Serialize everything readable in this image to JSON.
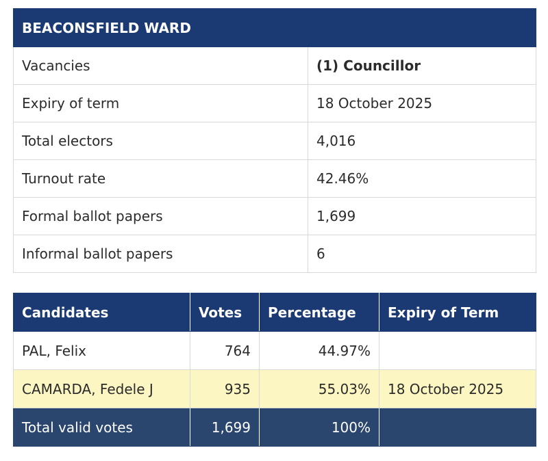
{
  "ward": {
    "title": "BEACONSFIELD WARD",
    "rows": [
      {
        "label": "Vacancies",
        "value": "(1) Councillor"
      },
      {
        "label": "Expiry of term",
        "value": "18 October 2025"
      },
      {
        "label": "Total electors",
        "value": "4,016"
      },
      {
        "label": "Turnout rate",
        "value": "42.46%"
      },
      {
        "label": "Formal ballot papers",
        "value": "1,699"
      },
      {
        "label": "Informal ballot papers",
        "value": "6"
      }
    ]
  },
  "candidates": {
    "headers": [
      "Candidates",
      "Votes",
      "Percentage",
      "Expiry of Term"
    ],
    "rows": [
      {
        "name": "PAL, Felix",
        "votes": "764",
        "percentage": "44.97%",
        "expiry": ""
      },
      {
        "name": "CAMARDA, Fedele J",
        "votes": "935",
        "percentage": "55.03%",
        "expiry": "18 October 2025"
      }
    ],
    "total": {
      "label": "Total valid votes",
      "votes": "1,699",
      "percentage": "100%",
      "expiry": ""
    }
  },
  "colors": {
    "header_bg": "#1b3a73",
    "total_bg": "#2a466f",
    "elected_bg": "#fcf6c2"
  }
}
